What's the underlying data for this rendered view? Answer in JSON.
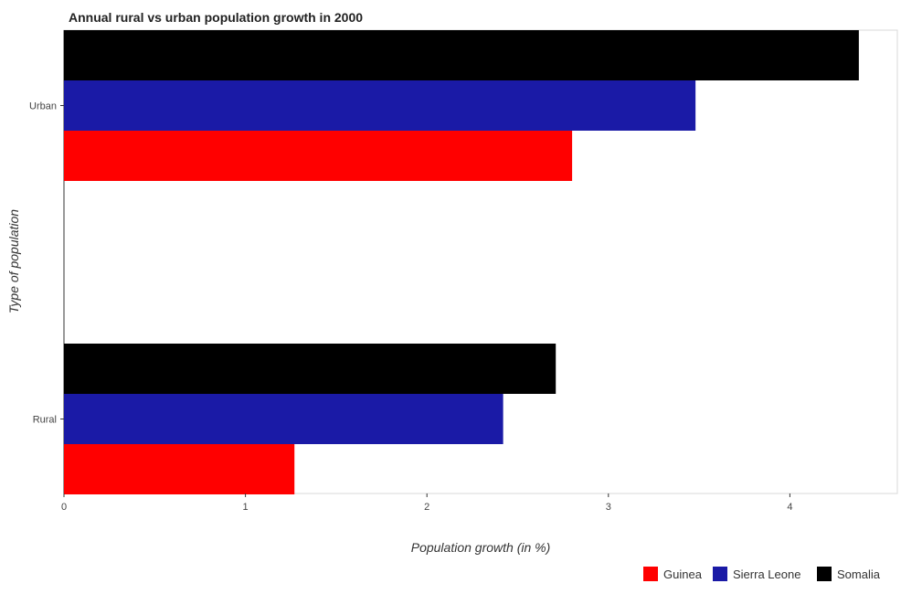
{
  "chart_data": {
    "type": "bar",
    "orientation": "horizontal",
    "title": "Annual rural vs urban population growth in 2000",
    "xlabel": "Population growth (in %)",
    "ylabel": "Type of population",
    "categories": [
      "Rural",
      "Urban "
    ],
    "series": [
      {
        "name": "Guinea",
        "color": "#ff0000",
        "values": [
          1.27,
          2.8
        ]
      },
      {
        "name": "Sierra Leone",
        "color": "#1a1aa6",
        "values": [
          2.42,
          3.48
        ]
      },
      {
        "name": "Somalia",
        "color": "#000000",
        "values": [
          2.71,
          4.38
        ]
      }
    ],
    "xlim": [
      0,
      4.6
    ],
    "xticks": [
      "0",
      "1",
      "2",
      "3",
      "4"
    ],
    "grid": false,
    "legend_position": "bottom-right"
  }
}
